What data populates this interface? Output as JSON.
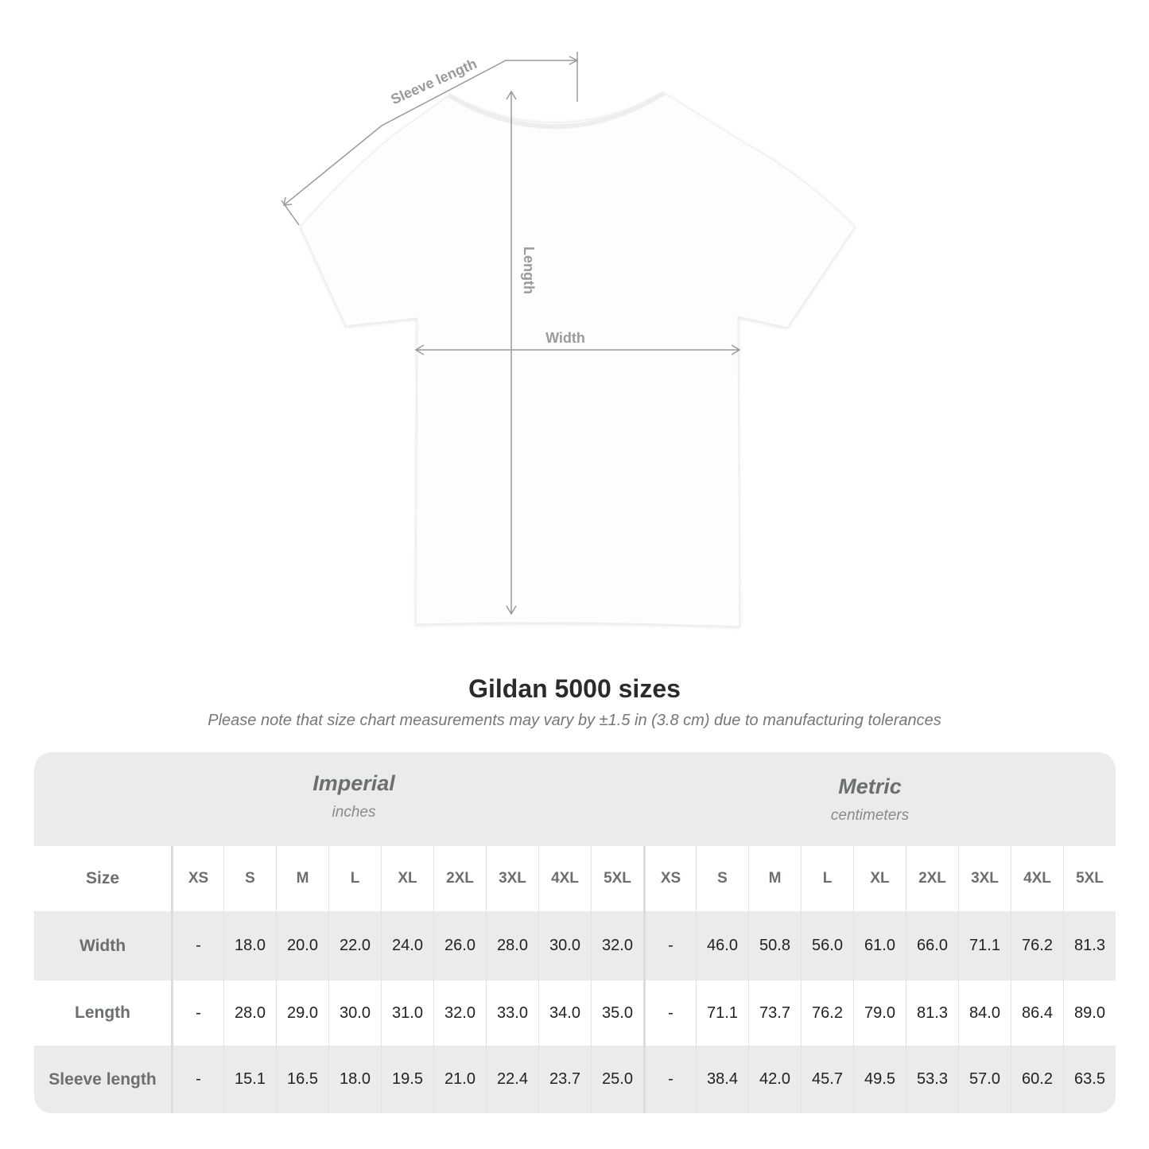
{
  "diagram": {
    "labels": {
      "sleeve": "Sleeve length",
      "length": "Length",
      "width": "Width"
    },
    "line_color": "#9a9a9a"
  },
  "title": "Gildan 5000 sizes",
  "note": "Please note that size chart measurements may vary by ±1.5 in (3.8 cm) due to manufacturing tolerances",
  "table": {
    "imperial": {
      "name": "Imperial",
      "unit": "inches"
    },
    "metric": {
      "name": "Metric",
      "unit": "centimeters"
    },
    "size_label": "Size",
    "sizes": [
      "XS",
      "S",
      "M",
      "L",
      "XL",
      "2XL",
      "3XL",
      "4XL",
      "5XL"
    ],
    "rows": [
      {
        "label": "Width",
        "imperial": [
          "-",
          "18.0",
          "20.0",
          "22.0",
          "24.0",
          "26.0",
          "28.0",
          "30.0",
          "32.0"
        ],
        "metric": [
          "-",
          "46.0",
          "50.8",
          "56.0",
          "61.0",
          "66.0",
          "71.1",
          "76.2",
          "81.3"
        ]
      },
      {
        "label": "Length",
        "imperial": [
          "-",
          "28.0",
          "29.0",
          "30.0",
          "31.0",
          "32.0",
          "33.0",
          "34.0",
          "35.0"
        ],
        "metric": [
          "-",
          "71.1",
          "73.7",
          "76.2",
          "79.0",
          "81.3",
          "84.0",
          "86.4",
          "89.0"
        ]
      },
      {
        "label": "Sleeve length",
        "imperial": [
          "-",
          "15.1",
          "16.5",
          "18.0",
          "19.5",
          "21.0",
          "22.4",
          "23.7",
          "25.0"
        ],
        "metric": [
          "-",
          "38.4",
          "42.0",
          "45.7",
          "49.5",
          "53.3",
          "57.0",
          "60.2",
          "63.5"
        ]
      }
    ]
  }
}
